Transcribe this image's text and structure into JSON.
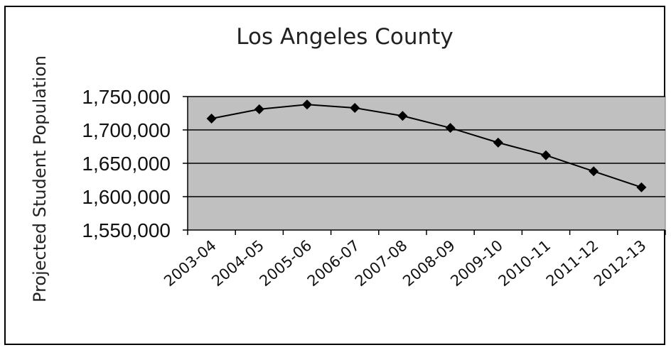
{
  "chart_data": {
    "type": "line",
    "title": "Los Angeles County",
    "xlabel": "",
    "ylabel": "Projected Student Population",
    "categories": [
      "2003-04",
      "2004-05",
      "2005-06",
      "2006-07",
      "2007-08",
      "2008-09",
      "2009-10",
      "2010-11",
      "2011-12",
      "2012-13"
    ],
    "series": [
      {
        "values": [
          1717000,
          1731000,
          1738000,
          1733000,
          1721000,
          1703000,
          1681000,
          1662000,
          1638000,
          1614000
        ]
      }
    ],
    "ylim": [
      1550000,
      1750000
    ],
    "yticks": [
      {
        "value": 1550000,
        "label": "1,550,000"
      },
      {
        "value": 1600000,
        "label": "1,600,000"
      },
      {
        "value": 1650000,
        "label": "1,650,000"
      },
      {
        "value": 1700000,
        "label": "1,700,000"
      },
      {
        "value": 1750000,
        "label": "1,750,000"
      }
    ],
    "grid": true,
    "legend": "none",
    "colors": {
      "plot_background": "#c0c0c0",
      "gridline": "#000000",
      "line": "#000000",
      "marker": "#000000"
    }
  }
}
